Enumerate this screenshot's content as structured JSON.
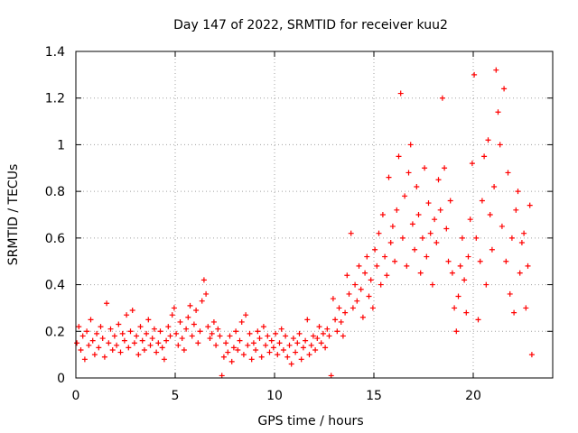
{
  "chart_data": {
    "type": "scatter",
    "title": "Day 147 of 2022, SRMTID for receiver kuu2",
    "xlabel": "GPS time / hours",
    "ylabel": "SRMTID / TECUs",
    "xlim": [
      0,
      24
    ],
    "ylim": [
      0,
      1.4
    ],
    "x_ticks": [
      0,
      5,
      10,
      15,
      20
    ],
    "x_tick_labels": [
      "0",
      "5",
      "10",
      "15",
      "20"
    ],
    "y_ticks": [
      0,
      0.2,
      0.4,
      0.6,
      0.8,
      1.0,
      1.2,
      1.4
    ],
    "y_tick_labels": [
      "0",
      "0.2",
      "0.4",
      "0.6",
      "0.8",
      "1",
      "1.2",
      "1.4"
    ],
    "grid": true,
    "marker": "plus",
    "series": [
      {
        "name": "SRMTID",
        "color": "#ff0000",
        "points": [
          [
            0.05,
            0.15
          ],
          [
            0.15,
            0.22
          ],
          [
            0.25,
            0.12
          ],
          [
            0.35,
            0.18
          ],
          [
            0.45,
            0.08
          ],
          [
            0.55,
            0.2
          ],
          [
            0.65,
            0.14
          ],
          [
            0.75,
            0.25
          ],
          [
            0.85,
            0.16
          ],
          [
            0.95,
            0.1
          ],
          [
            1.05,
            0.19
          ],
          [
            1.15,
            0.13
          ],
          [
            1.25,
            0.22
          ],
          [
            1.35,
            0.17
          ],
          [
            1.45,
            0.09
          ],
          [
            1.55,
            0.32
          ],
          [
            1.65,
            0.15
          ],
          [
            1.75,
            0.21
          ],
          [
            1.85,
            0.12
          ],
          [
            1.95,
            0.18
          ],
          [
            2.05,
            0.14
          ],
          [
            2.15,
            0.23
          ],
          [
            2.25,
            0.11
          ],
          [
            2.35,
            0.19
          ],
          [
            2.45,
            0.16
          ],
          [
            2.55,
            0.27
          ],
          [
            2.65,
            0.13
          ],
          [
            2.75,
            0.2
          ],
          [
            2.85,
            0.29
          ],
          [
            2.95,
            0.15
          ],
          [
            3.05,
            0.18
          ],
          [
            3.15,
            0.1
          ],
          [
            3.25,
            0.22
          ],
          [
            3.35,
            0.16
          ],
          [
            3.45,
            0.12
          ],
          [
            3.55,
            0.19
          ],
          [
            3.65,
            0.25
          ],
          [
            3.75,
            0.14
          ],
          [
            3.85,
            0.17
          ],
          [
            3.95,
            0.21
          ],
          [
            4.05,
            0.11
          ],
          [
            4.15,
            0.15
          ],
          [
            4.25,
            0.2
          ],
          [
            4.35,
            0.13
          ],
          [
            4.45,
            0.08
          ],
          [
            4.55,
            0.16
          ],
          [
            4.65,
            0.22
          ],
          [
            4.75,
            0.18
          ],
          [
            4.85,
            0.27
          ],
          [
            4.95,
            0.3
          ],
          [
            5.05,
            0.19
          ],
          [
            5.15,
            0.14
          ],
          [
            5.25,
            0.24
          ],
          [
            5.35,
            0.17
          ],
          [
            5.45,
            0.12
          ],
          [
            5.55,
            0.21
          ],
          [
            5.65,
            0.26
          ],
          [
            5.75,
            0.31
          ],
          [
            5.85,
            0.18
          ],
          [
            5.95,
            0.23
          ],
          [
            6.05,
            0.29
          ],
          [
            6.15,
            0.15
          ],
          [
            6.25,
            0.2
          ],
          [
            6.35,
            0.33
          ],
          [
            6.45,
            0.42
          ],
          [
            6.55,
            0.36
          ],
          [
            6.65,
            0.22
          ],
          [
            6.75,
            0.17
          ],
          [
            6.85,
            0.19
          ],
          [
            6.95,
            0.24
          ],
          [
            7.05,
            0.14
          ],
          [
            7.15,
            0.21
          ],
          [
            7.25,
            0.18
          ],
          [
            7.35,
            0.01
          ],
          [
            7.45,
            0.09
          ],
          [
            7.55,
            0.15
          ],
          [
            7.65,
            0.11
          ],
          [
            7.75,
            0.18
          ],
          [
            7.85,
            0.07
          ],
          [
            7.95,
            0.13
          ],
          [
            8.05,
            0.2
          ],
          [
            8.15,
            0.12
          ],
          [
            8.25,
            0.16
          ],
          [
            8.35,
            0.24
          ],
          [
            8.45,
            0.1
          ],
          [
            8.55,
            0.27
          ],
          [
            8.65,
            0.14
          ],
          [
            8.75,
            0.19
          ],
          [
            8.85,
            0.08
          ],
          [
            8.95,
            0.15
          ],
          [
            9.05,
            0.12
          ],
          [
            9.15,
            0.2
          ],
          [
            9.25,
            0.17
          ],
          [
            9.35,
            0.09
          ],
          [
            9.45,
            0.22
          ],
          [
            9.55,
            0.14
          ],
          [
            9.65,
            0.18
          ],
          [
            9.75,
            0.11
          ],
          [
            9.85,
            0.16
          ],
          [
            9.95,
            0.13
          ],
          [
            10.05,
            0.19
          ],
          [
            10.15,
            0.1
          ],
          [
            10.25,
            0.15
          ],
          [
            10.35,
            0.21
          ],
          [
            10.45,
            0.12
          ],
          [
            10.55,
            0.18
          ],
          [
            10.65,
            0.09
          ],
          [
            10.75,
            0.14
          ],
          [
            10.85,
            0.06
          ],
          [
            10.95,
            0.17
          ],
          [
            11.05,
            0.11
          ],
          [
            11.15,
            0.15
          ],
          [
            11.25,
            0.19
          ],
          [
            11.35,
            0.08
          ],
          [
            11.45,
            0.13
          ],
          [
            11.55,
            0.16
          ],
          [
            11.65,
            0.25
          ],
          [
            11.75,
            0.1
          ],
          [
            11.85,
            0.14
          ],
          [
            11.95,
            0.18
          ],
          [
            12.05,
            0.12
          ],
          [
            12.15,
            0.17
          ],
          [
            12.25,
            0.22
          ],
          [
            12.35,
            0.15
          ],
          [
            12.45,
            0.19
          ],
          [
            12.55,
            0.13
          ],
          [
            12.65,
            0.21
          ],
          [
            12.75,
            0.18
          ],
          [
            12.85,
            0.01
          ],
          [
            12.95,
            0.34
          ],
          [
            13.05,
            0.25
          ],
          [
            13.15,
            0.2
          ],
          [
            13.25,
            0.3
          ],
          [
            13.35,
            0.24
          ],
          [
            13.45,
            0.18
          ],
          [
            13.55,
            0.28
          ],
          [
            13.65,
            0.44
          ],
          [
            13.75,
            0.36
          ],
          [
            13.85,
            0.62
          ],
          [
            13.95,
            0.3
          ],
          [
            14.05,
            0.4
          ],
          [
            14.15,
            0.33
          ],
          [
            14.25,
            0.48
          ],
          [
            14.35,
            0.38
          ],
          [
            14.45,
            0.26
          ],
          [
            14.55,
            0.45
          ],
          [
            14.65,
            0.52
          ],
          [
            14.75,
            0.35
          ],
          [
            14.85,
            0.42
          ],
          [
            14.95,
            0.3
          ],
          [
            15.05,
            0.55
          ],
          [
            15.15,
            0.48
          ],
          [
            15.25,
            0.62
          ],
          [
            15.35,
            0.4
          ],
          [
            15.45,
            0.7
          ],
          [
            15.55,
            0.52
          ],
          [
            15.65,
            0.44
          ],
          [
            15.75,
            0.86
          ],
          [
            15.85,
            0.58
          ],
          [
            15.95,
            0.65
          ],
          [
            16.05,
            0.5
          ],
          [
            16.15,
            0.72
          ],
          [
            16.25,
            0.95
          ],
          [
            16.35,
            1.22
          ],
          [
            16.45,
            0.6
          ],
          [
            16.55,
            0.78
          ],
          [
            16.65,
            0.48
          ],
          [
            16.75,
            0.88
          ],
          [
            16.85,
            1.0
          ],
          [
            16.95,
            0.66
          ],
          [
            17.05,
            0.55
          ],
          [
            17.15,
            0.82
          ],
          [
            17.25,
            0.7
          ],
          [
            17.35,
            0.45
          ],
          [
            17.45,
            0.6
          ],
          [
            17.55,
            0.9
          ],
          [
            17.65,
            0.52
          ],
          [
            17.75,
            0.75
          ],
          [
            17.85,
            0.62
          ],
          [
            17.95,
            0.4
          ],
          [
            18.05,
            0.68
          ],
          [
            18.15,
            0.58
          ],
          [
            18.25,
            0.85
          ],
          [
            18.35,
            0.72
          ],
          [
            18.45,
            1.2
          ],
          [
            18.55,
            0.9
          ],
          [
            18.65,
            0.64
          ],
          [
            18.75,
            0.5
          ],
          [
            18.85,
            0.76
          ],
          [
            18.95,
            0.45
          ],
          [
            19.05,
            0.3
          ],
          [
            19.15,
            0.2
          ],
          [
            19.25,
            0.35
          ],
          [
            19.35,
            0.48
          ],
          [
            19.45,
            0.6
          ],
          [
            19.55,
            0.42
          ],
          [
            19.65,
            0.28
          ],
          [
            19.75,
            0.52
          ],
          [
            19.85,
            0.68
          ],
          [
            19.95,
            0.92
          ],
          [
            20.05,
            1.3
          ],
          [
            20.15,
            0.6
          ],
          [
            20.25,
            0.25
          ],
          [
            20.35,
            0.5
          ],
          [
            20.45,
            0.76
          ],
          [
            20.55,
            0.95
          ],
          [
            20.65,
            0.4
          ],
          [
            20.75,
            1.02
          ],
          [
            20.85,
            0.7
          ],
          [
            20.95,
            0.55
          ],
          [
            21.05,
            0.82
          ],
          [
            21.15,
            1.32
          ],
          [
            21.25,
            1.14
          ],
          [
            21.35,
            1.0
          ],
          [
            21.45,
            0.65
          ],
          [
            21.55,
            1.24
          ],
          [
            21.65,
            0.5
          ],
          [
            21.75,
            0.88
          ],
          [
            21.85,
            0.36
          ],
          [
            21.95,
            0.6
          ],
          [
            22.05,
            0.28
          ],
          [
            22.15,
            0.72
          ],
          [
            22.25,
            0.8
          ],
          [
            22.35,
            0.45
          ],
          [
            22.45,
            0.58
          ],
          [
            22.55,
            0.62
          ],
          [
            22.65,
            0.3
          ],
          [
            22.75,
            0.48
          ],
          [
            22.85,
            0.74
          ],
          [
            22.95,
            0.1
          ]
        ]
      }
    ]
  }
}
